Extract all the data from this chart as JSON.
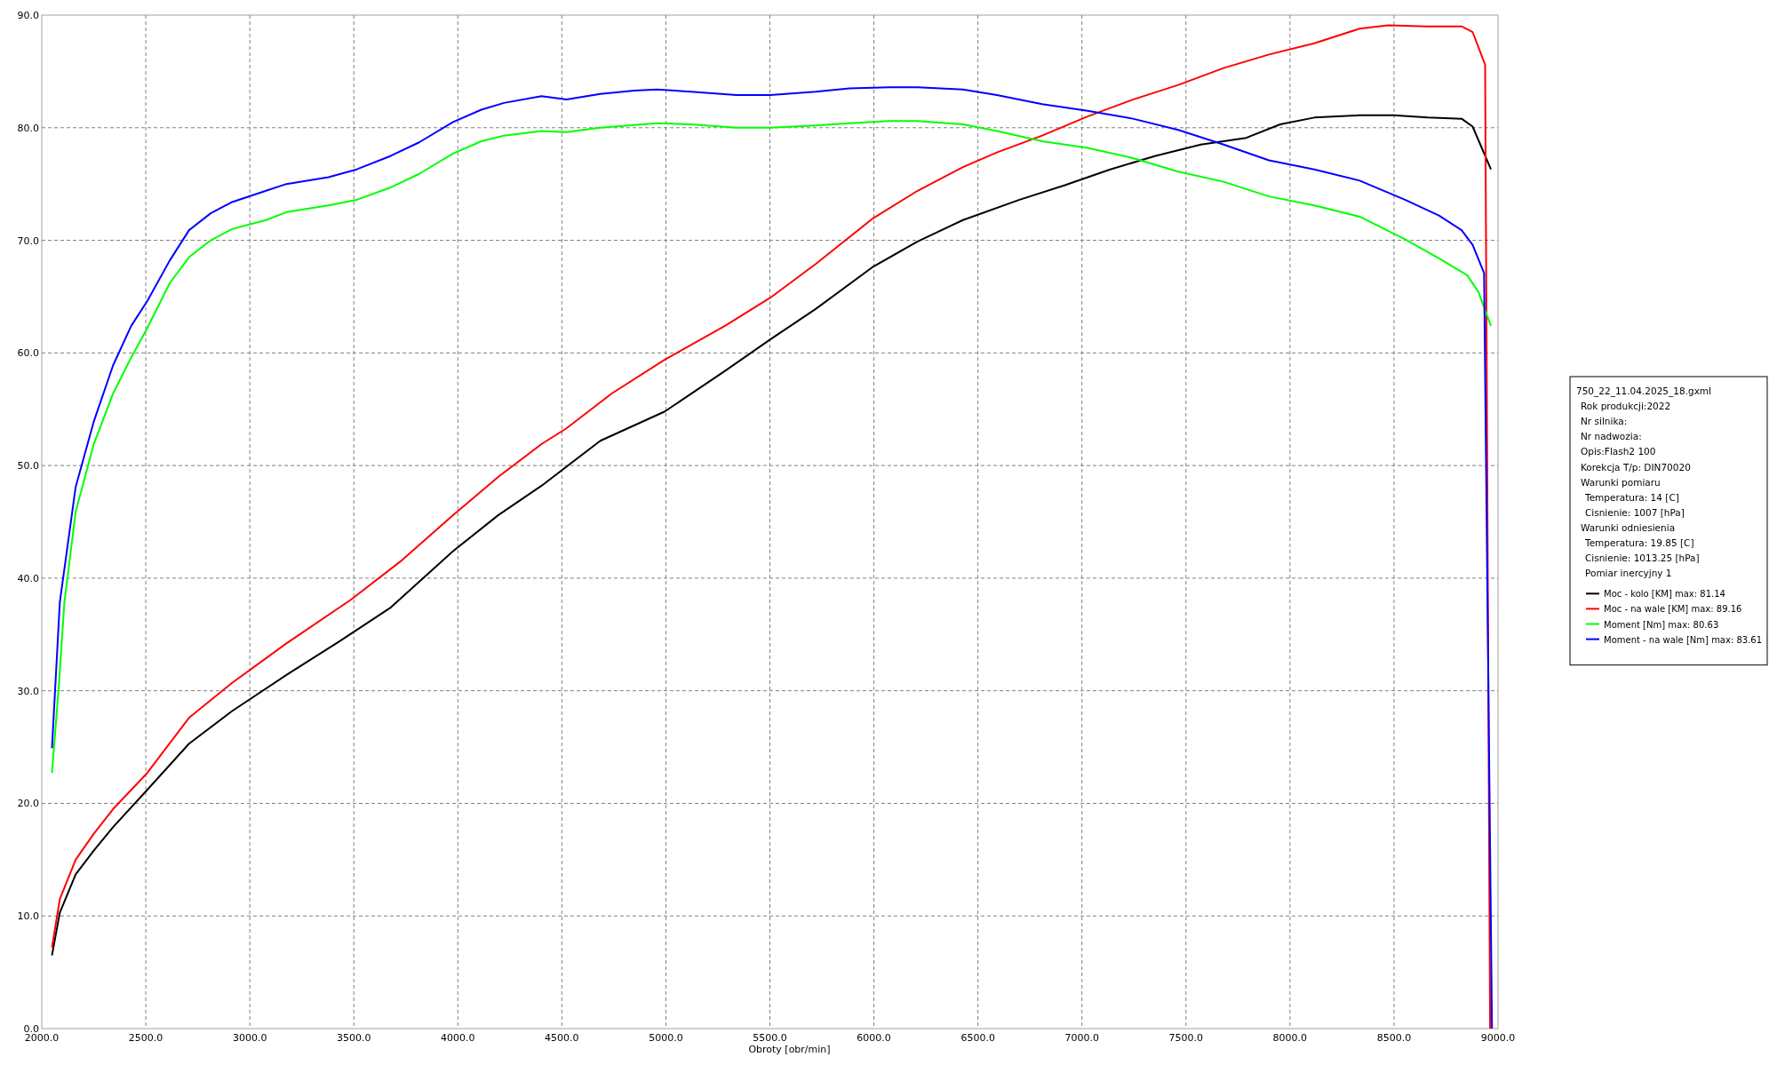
{
  "chart_data": {
    "type": "line",
    "xlabel": "Obroty [obr/min]",
    "xlim": [
      2000,
      9000
    ],
    "xticks": [
      {
        "value": 2000,
        "label": "2000.0"
      },
      {
        "value": 2500,
        "label": "2500.0"
      },
      {
        "value": 3000,
        "label": "3000.0"
      },
      {
        "value": 3500,
        "label": "3500.0"
      },
      {
        "value": 4000,
        "label": "4000.0"
      },
      {
        "value": 4500,
        "label": "4500.0"
      },
      {
        "value": 5000,
        "label": "5000.0"
      },
      {
        "value": 5500,
        "label": "5500.0"
      },
      {
        "value": 6000,
        "label": "6000.0"
      },
      {
        "value": 6500,
        "label": "6500.0"
      },
      {
        "value": 7000,
        "label": "7000.0"
      },
      {
        "value": 7500,
        "label": "7500.0"
      },
      {
        "value": 8000,
        "label": "8000.0"
      },
      {
        "value": 8500,
        "label": "8500.0"
      },
      {
        "value": 9000,
        "label": "9000.0"
      }
    ],
    "ylim": [
      0,
      90
    ],
    "yticks": [
      {
        "value": 0,
        "label": "0.0"
      },
      {
        "value": 10,
        "label": "10.0"
      },
      {
        "value": 20,
        "label": "20.0"
      },
      {
        "value": 30,
        "label": "30.0"
      },
      {
        "value": 40,
        "label": "40.0"
      },
      {
        "value": 50,
        "label": "50.0"
      },
      {
        "value": 60,
        "label": "60.0"
      },
      {
        "value": 70,
        "label": "70.0"
      },
      {
        "value": 80,
        "label": "80.0"
      },
      {
        "value": 90,
        "label": "90.0"
      }
    ],
    "grid": true,
    "legend": "right",
    "marker": "none",
    "line_style": "solid",
    "annotations": [
      "750_22_11.04.2025_18.gxml",
      "Rok produkcji:2022",
      "Nr silnika:",
      "Nr nadwozia:",
      "Opis:Flash2 100",
      "Korekcja T/p: DIN70020",
      "Warunki pomiaru",
      "  Temperatura: 14 [C]",
      "  Cisnienie: 1007 [hPa]",
      "Warunki odniesienia",
      "  Temperatura: 19.85 [C]",
      "  Cisnienie: 1013.25 [hPa]",
      "  Pomiar inercyjny 1"
    ],
    "series": [
      {
        "name": "Moc - kolo [KM] max: 81.14",
        "color": "#000000",
        "x": [
          2049,
          2087,
          2163,
          2250,
          2343,
          2507,
          2708,
          2915,
          3176,
          3432,
          3678,
          3977,
          4195,
          4402,
          4685,
          4995,
          5284,
          5502,
          5720,
          5992,
          6210,
          6428,
          6700,
          6918,
          7136,
          7354,
          7572,
          7790,
          7953,
          8117,
          8335,
          8498,
          8662,
          8825,
          8878,
          8966
        ],
        "values": [
          6.5,
          10.3,
          13.7,
          15.8,
          17.9,
          21.2,
          25.3,
          28.2,
          31.4,
          34.4,
          37.4,
          42.4,
          45.6,
          48.2,
          52.2,
          54.8,
          58.4,
          61.2,
          63.9,
          67.6,
          69.9,
          71.8,
          73.6,
          74.9,
          76.3,
          77.5,
          78.5,
          79.1,
          80.3,
          80.9,
          81.1,
          81.1,
          80.9,
          80.8,
          80.1,
          76.3
        ]
      },
      {
        "name": "Moc - na wale [KM] max: 89.16",
        "color": "#ff0000",
        "x": [
          2049,
          2087,
          2163,
          2250,
          2343,
          2507,
          2708,
          2915,
          3176,
          3487,
          3732,
          3977,
          4195,
          4402,
          4522,
          4740,
          4995,
          5284,
          5502,
          5720,
          5992,
          6210,
          6428,
          6591,
          6809,
          7027,
          7245,
          7463,
          7681,
          7899,
          8117,
          8335,
          8471,
          8662,
          8825,
          8878,
          8938,
          8962
        ],
        "values": [
          7.2,
          11.5,
          15.0,
          17.3,
          19.5,
          22.7,
          27.6,
          30.7,
          34.2,
          38.1,
          41.6,
          45.6,
          49.0,
          51.9,
          53.3,
          56.4,
          59.4,
          62.4,
          64.9,
          67.9,
          71.9,
          74.4,
          76.5,
          77.8,
          79.3,
          81.0,
          82.5,
          83.8,
          85.3,
          86.5,
          87.5,
          88.8,
          89.1,
          89.0,
          89.0,
          88.5,
          85.6,
          0
        ]
      },
      {
        "name": "Moment [Nm] max: 80.63",
        "color": "#00ff00",
        "x": [
          2049,
          2082,
          2109,
          2163,
          2250,
          2343,
          2430,
          2507,
          2615,
          2708,
          2812,
          2915,
          3078,
          3176,
          3378,
          3514,
          3678,
          3814,
          3977,
          4113,
          4222,
          4402,
          4522,
          4685,
          4957,
          5121,
          5339,
          5502,
          5720,
          5883,
          6074,
          6210,
          6428,
          6591,
          6809,
          7027,
          7245,
          7463,
          7681,
          7899,
          8117,
          8335,
          8553,
          8716,
          8852,
          8906,
          8966
        ],
        "values": [
          22.7,
          30.4,
          37.9,
          45.9,
          51.9,
          56.4,
          59.6,
          62.2,
          66.2,
          68.5,
          70.0,
          71.0,
          71.8,
          72.5,
          73.1,
          73.6,
          74.7,
          75.9,
          77.7,
          78.8,
          79.3,
          79.7,
          79.6,
          80.0,
          80.4,
          80.3,
          80.0,
          80.0,
          80.2,
          80.4,
          80.6,
          80.6,
          80.3,
          79.7,
          78.8,
          78.2,
          77.3,
          76.1,
          75.2,
          73.9,
          73.1,
          72.1,
          70.1,
          68.4,
          66.9,
          65.4,
          62.4
        ]
      },
      {
        "name": "Moment - na wale [Nm] max: 83.61",
        "color": "#0000ff",
        "x": [
          2049,
          2087,
          2163,
          2250,
          2343,
          2430,
          2507,
          2615,
          2708,
          2812,
          2915,
          3078,
          3176,
          3378,
          3514,
          3678,
          3814,
          3977,
          4113,
          4222,
          4402,
          4522,
          4685,
          4848,
          4957,
          5121,
          5339,
          5502,
          5720,
          5883,
          6074,
          6210,
          6428,
          6591,
          6809,
          7027,
          7245,
          7463,
          7681,
          7899,
          8117,
          8335,
          8553,
          8716,
          8825,
          8878,
          8933,
          8971
        ],
        "values": [
          24.9,
          37.9,
          48.1,
          53.9,
          58.9,
          62.4,
          64.6,
          68.2,
          70.9,
          72.4,
          73.4,
          74.4,
          75.0,
          75.6,
          76.3,
          77.5,
          78.7,
          80.5,
          81.6,
          82.2,
          82.8,
          82.5,
          83.0,
          83.3,
          83.4,
          83.2,
          82.9,
          82.9,
          83.2,
          83.5,
          83.6,
          83.6,
          83.4,
          82.9,
          82.1,
          81.5,
          80.8,
          79.8,
          78.5,
          77.1,
          76.3,
          75.3,
          73.6,
          72.2,
          70.9,
          69.6,
          67.1,
          0
        ]
      }
    ]
  }
}
